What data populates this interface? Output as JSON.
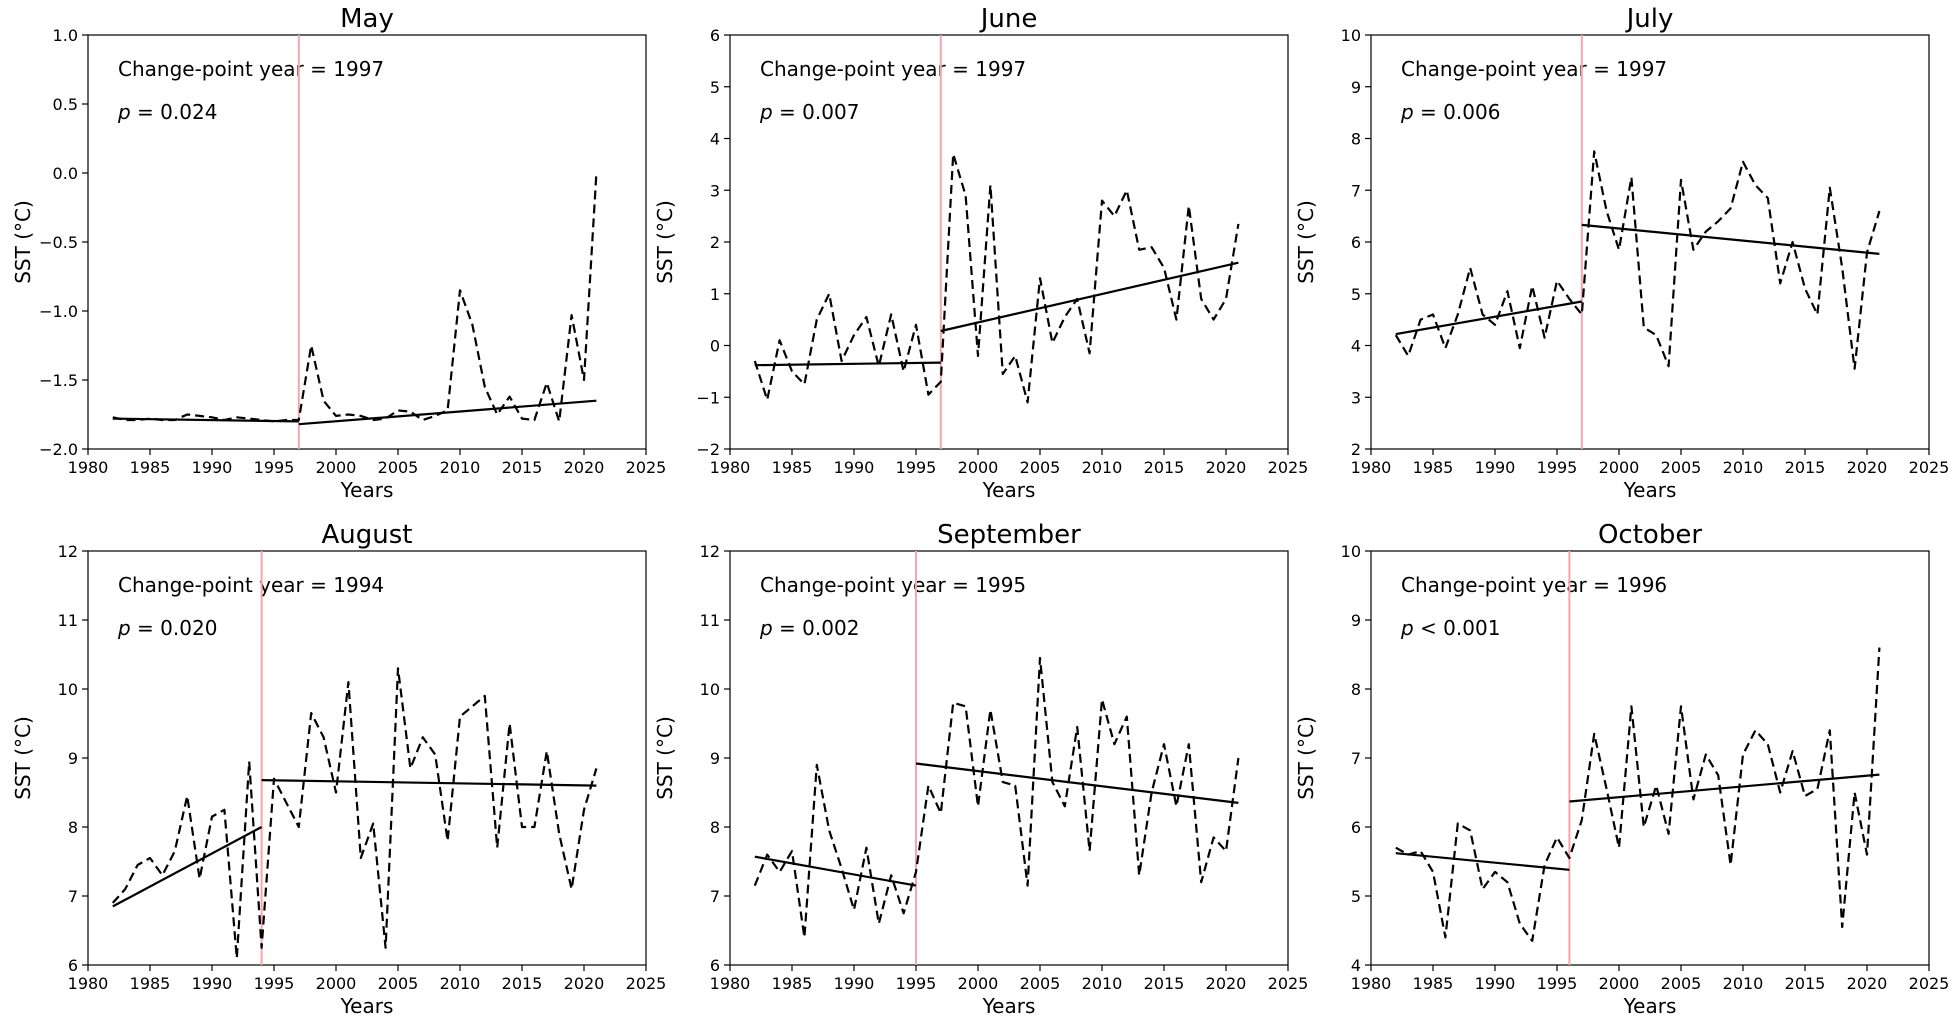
{
  "chart_data": [
    {
      "type": "line",
      "title": "May",
      "xlabel": "Years",
      "ylabel": "SST (°C)",
      "xlim": [
        1980,
        2025
      ],
      "ylim": [
        -2.0,
        1.0
      ],
      "xticks": [
        1980,
        1985,
        1990,
        1995,
        2000,
        2005,
        2010,
        2015,
        2020,
        2025
      ],
      "xtick_labels": [
        "1980",
        "1985",
        "1990",
        "1995",
        "2000",
        "2005",
        "2010",
        "2015",
        "2020",
        "2025"
      ],
      "yticks": [
        -2.0,
        -1.5,
        -1.0,
        -0.5,
        0.0,
        0.5,
        1.0
      ],
      "ytick_labels": [
        "−2.0",
        "−1.5",
        "−1.0",
        "−0.5",
        "0.0",
        "0.5",
        "1.0"
      ],
      "change_point_text": "Change-point year = 1997",
      "p_label": "p",
      "p_text": " = 0.024",
      "change_point": 1997,
      "series": [
        {
          "name": "SST",
          "style": "dashed",
          "x": [
            1982,
            1983,
            1984,
            1985,
            1986,
            1987,
            1988,
            1989,
            1990,
            1991,
            1992,
            1993,
            1994,
            1995,
            1996,
            1997,
            1998,
            1999,
            2000,
            2001,
            2002,
            2003,
            2004,
            2005,
            2006,
            2007,
            2008,
            2009,
            2010,
            2011,
            2012,
            2013,
            2014,
            2015,
            2016,
            2017,
            2018,
            2019,
            2020,
            2021
          ],
          "y": [
            -1.77,
            -1.79,
            -1.79,
            -1.78,
            -1.79,
            -1.79,
            -1.75,
            -1.76,
            -1.77,
            -1.79,
            -1.77,
            -1.78,
            -1.79,
            -1.8,
            -1.79,
            -1.79,
            -1.25,
            -1.65,
            -1.76,
            -1.75,
            -1.76,
            -1.79,
            -1.78,
            -1.72,
            -1.73,
            -1.79,
            -1.76,
            -1.72,
            -0.85,
            -1.1,
            -1.55,
            -1.75,
            -1.62,
            -1.78,
            -1.79,
            -1.52,
            -1.8,
            -1.03,
            -1.5,
            0.0
          ]
        },
        {
          "name": "Trend before change-point",
          "style": "solid",
          "x": [
            1982,
            1997
          ],
          "y": [
            -1.78,
            -1.8
          ]
        },
        {
          "name": "Trend after change-point",
          "style": "solid",
          "x": [
            1997,
            2021
          ],
          "y": [
            -1.82,
            -1.65
          ]
        }
      ]
    },
    {
      "type": "line",
      "title": "June",
      "xlabel": "Years",
      "ylabel": "SST (°C)",
      "xlim": [
        1980,
        2025
      ],
      "ylim": [
        -2,
        6
      ],
      "xticks": [
        1980,
        1985,
        1990,
        1995,
        2000,
        2005,
        2010,
        2015,
        2020,
        2025
      ],
      "xtick_labels": [
        "1980",
        "1985",
        "1990",
        "1995",
        "2000",
        "2005",
        "2010",
        "2015",
        "2020",
        "2025"
      ],
      "yticks": [
        -2,
        -1,
        0,
        1,
        2,
        3,
        4,
        5,
        6
      ],
      "ytick_labels": [
        "−2",
        "−1",
        "0",
        "1",
        "2",
        "3",
        "4",
        "5",
        "6"
      ],
      "change_point_text": "Change-point year = 1997",
      "p_label": "p",
      "p_text": " = 0.007",
      "change_point": 1997,
      "series": [
        {
          "name": "SST",
          "style": "dashed",
          "x": [
            1982,
            1983,
            1984,
            1985,
            1986,
            1987,
            1988,
            1989,
            1990,
            1991,
            1992,
            1993,
            1994,
            1995,
            1996,
            1997,
            1998,
            1999,
            2000,
            2001,
            2002,
            2003,
            2004,
            2005,
            2006,
            2007,
            2008,
            2009,
            2010,
            2011,
            2012,
            2013,
            2014,
            2015,
            2016,
            2017,
            2018,
            2019,
            2020,
            2021
          ],
          "y": [
            -0.3,
            -1.05,
            0.1,
            -0.5,
            -0.75,
            0.5,
            1.0,
            -0.3,
            0.2,
            0.55,
            -0.4,
            0.6,
            -0.5,
            0.4,
            -0.95,
            -0.7,
            3.7,
            2.9,
            -0.2,
            3.1,
            -0.55,
            -0.2,
            -1.1,
            1.3,
            0.05,
            0.55,
            0.9,
            -0.15,
            2.8,
            2.5,
            3.0,
            1.85,
            1.9,
            1.5,
            0.5,
            2.7,
            0.9,
            0.5,
            0.9,
            2.35
          ]
        },
        {
          "name": "Trend before change-point",
          "style": "solid",
          "x": [
            1982,
            1997
          ],
          "y": [
            -0.38,
            -0.33
          ]
        },
        {
          "name": "Trend after change-point",
          "style": "solid",
          "x": [
            1997,
            2021
          ],
          "y": [
            0.28,
            1.6
          ]
        }
      ]
    },
    {
      "type": "line",
      "title": "July",
      "xlabel": "Years",
      "ylabel": "SST (°C)",
      "xlim": [
        1980,
        2025
      ],
      "ylim": [
        2,
        10
      ],
      "xticks": [
        1980,
        1985,
        1990,
        1995,
        2000,
        2005,
        2010,
        2015,
        2020,
        2025
      ],
      "xtick_labels": [
        "1980",
        "1985",
        "1990",
        "1995",
        "2000",
        "2005",
        "2010",
        "2015",
        "2020",
        "2025"
      ],
      "yticks": [
        2,
        3,
        4,
        5,
        6,
        7,
        8,
        9,
        10
      ],
      "ytick_labels": [
        "2",
        "3",
        "4",
        "5",
        "6",
        "7",
        "8",
        "9",
        "10"
      ],
      "change_point_text": "Change-point year = 1997",
      "p_label": "p",
      "p_text": " = 0.006",
      "change_point": 1997,
      "series": [
        {
          "name": "SST",
          "style": "dashed",
          "x": [
            1982,
            1983,
            1984,
            1985,
            1986,
            1987,
            1988,
            1989,
            1990,
            1991,
            1992,
            1993,
            1994,
            1995,
            1996,
            1997,
            1998,
            1999,
            2000,
            2001,
            2002,
            2003,
            2004,
            2005,
            2006,
            2007,
            2008,
            2009,
            2010,
            2011,
            2012,
            2013,
            2014,
            2015,
            2016,
            2017,
            2018,
            2019,
            2020,
            2021
          ],
          "y": [
            4.2,
            3.8,
            4.5,
            4.6,
            3.95,
            4.6,
            5.5,
            4.6,
            4.4,
            5.05,
            3.95,
            5.15,
            4.15,
            5.25,
            4.9,
            4.6,
            7.75,
            6.6,
            5.85,
            7.25,
            4.35,
            4.2,
            3.6,
            7.2,
            5.85,
            6.2,
            6.4,
            6.65,
            7.55,
            7.1,
            6.85,
            5.2,
            6.0,
            5.1,
            4.6,
            7.05,
            5.5,
            3.55,
            5.8,
            6.6
          ]
        },
        {
          "name": "Trend before change-point",
          "style": "solid",
          "x": [
            1982,
            1997
          ],
          "y": [
            4.22,
            4.85
          ]
        },
        {
          "name": "Trend after change-point",
          "style": "solid",
          "x": [
            1997,
            2021
          ],
          "y": [
            6.33,
            5.77
          ]
        }
      ]
    },
    {
      "type": "line",
      "title": "August",
      "xlabel": "Years",
      "ylabel": "SST (°C)",
      "xlim": [
        1980,
        2025
      ],
      "ylim": [
        6,
        12
      ],
      "xticks": [
        1980,
        1985,
        1990,
        1995,
        2000,
        2005,
        2010,
        2015,
        2020,
        2025
      ],
      "xtick_labels": [
        "1980",
        "1985",
        "1990",
        "1995",
        "2000",
        "2005",
        "2010",
        "2015",
        "2020",
        "2025"
      ],
      "yticks": [
        6,
        7,
        8,
        9,
        10,
        11,
        12
      ],
      "ytick_labels": [
        "6",
        "7",
        "8",
        "9",
        "10",
        "11",
        "12"
      ],
      "change_point_text": "Change-point year = 1994",
      "p_label": "p",
      "p_text": " = 0.020",
      "change_point": 1994,
      "series": [
        {
          "name": "SST",
          "style": "dashed",
          "x": [
            1982,
            1983,
            1984,
            1985,
            1986,
            1987,
            1988,
            1989,
            1990,
            1991,
            1992,
            1993,
            1994,
            1995,
            1996,
            1997,
            1998,
            1999,
            2000,
            2001,
            2002,
            2003,
            2004,
            2005,
            2006,
            2007,
            2008,
            2009,
            2010,
            2011,
            2012,
            2013,
            2014,
            2015,
            2016,
            2017,
            2018,
            2019,
            2020,
            2021
          ],
          "y": [
            6.9,
            7.1,
            7.45,
            7.55,
            7.3,
            7.65,
            8.45,
            7.25,
            8.15,
            8.25,
            6.1,
            8.95,
            6.25,
            8.7,
            8.35,
            8.0,
            9.65,
            9.3,
            8.5,
            10.1,
            7.55,
            8.05,
            6.25,
            10.3,
            8.85,
            9.3,
            9.05,
            7.8,
            9.6,
            9.75,
            9.9,
            7.7,
            9.5,
            8.0,
            8.0,
            9.1,
            7.9,
            7.1,
            8.25,
            8.85
          ]
        },
        {
          "name": "Trend before change-point",
          "style": "solid",
          "x": [
            1982,
            1994
          ],
          "y": [
            6.85,
            8.0
          ]
        },
        {
          "name": "Trend after change-point",
          "style": "solid",
          "x": [
            1994,
            2021
          ],
          "y": [
            8.68,
            8.6
          ]
        }
      ]
    },
    {
      "type": "line",
      "title": "September",
      "xlabel": "Years",
      "ylabel": "SST (°C)",
      "xlim": [
        1980,
        2025
      ],
      "ylim": [
        6,
        12
      ],
      "xticks": [
        1980,
        1985,
        1990,
        1995,
        2000,
        2005,
        2010,
        2015,
        2020,
        2025
      ],
      "xtick_labels": [
        "1980",
        "1985",
        "1990",
        "1995",
        "2000",
        "2005",
        "2010",
        "2015",
        "2020",
        "2025"
      ],
      "yticks": [
        6,
        7,
        8,
        9,
        10,
        11,
        12
      ],
      "ytick_labels": [
        "6",
        "7",
        "8",
        "9",
        "10",
        "11",
        "12"
      ],
      "change_point_text": "Change-point year = 1995",
      "p_label": "p",
      "p_text": " = 0.002",
      "change_point": 1995,
      "series": [
        {
          "name": "SST",
          "style": "dashed",
          "x": [
            1982,
            1983,
            1984,
            1985,
            1986,
            1987,
            1988,
            1989,
            1990,
            1991,
            1992,
            1993,
            1994,
            1995,
            1996,
            1997,
            1998,
            1999,
            2000,
            2001,
            2002,
            2003,
            2004,
            2005,
            2006,
            2007,
            2008,
            2009,
            2010,
            2011,
            2012,
            2013,
            2014,
            2015,
            2016,
            2017,
            2018,
            2019,
            2020,
            2021
          ],
          "y": [
            7.15,
            7.6,
            7.35,
            7.65,
            6.4,
            8.9,
            7.95,
            7.4,
            6.8,
            7.7,
            6.6,
            7.3,
            6.75,
            7.35,
            8.6,
            8.2,
            9.8,
            9.75,
            8.3,
            9.7,
            8.65,
            8.6,
            7.15,
            10.45,
            8.65,
            8.3,
            9.45,
            7.65,
            9.85,
            9.2,
            9.6,
            7.3,
            8.5,
            9.2,
            8.3,
            9.2,
            7.2,
            7.85,
            7.65,
            9.0
          ]
        },
        {
          "name": "Trend before change-point",
          "style": "solid",
          "x": [
            1982,
            1995
          ],
          "y": [
            7.57,
            7.15
          ]
        },
        {
          "name": "Trend after change-point",
          "style": "solid",
          "x": [
            1995,
            2021
          ],
          "y": [
            8.92,
            8.35
          ]
        }
      ]
    },
    {
      "type": "line",
      "title": "October",
      "xlabel": "Years",
      "ylabel": "SST (°C)",
      "xlim": [
        1980,
        2025
      ],
      "ylim": [
        4,
        10
      ],
      "xticks": [
        1980,
        1985,
        1990,
        1995,
        2000,
        2005,
        2010,
        2015,
        2020,
        2025
      ],
      "xtick_labels": [
        "1980",
        "1985",
        "1990",
        "1995",
        "2000",
        "2005",
        "2010",
        "2015",
        "2020",
        "2025"
      ],
      "yticks": [
        4,
        5,
        6,
        7,
        8,
        9,
        10
      ],
      "ytick_labels": [
        "4",
        "5",
        "6",
        "7",
        "8",
        "9",
        "10"
      ],
      "change_point_text": "Change-point year = 1996",
      "p_label": "p",
      "p_text": " < 0.001",
      "change_point": 1996,
      "series": [
        {
          "name": "SST",
          "style": "dashed",
          "x": [
            1982,
            1983,
            1984,
            1985,
            1986,
            1987,
            1988,
            1989,
            1990,
            1991,
            1992,
            1993,
            1994,
            1995,
            1996,
            1997,
            1998,
            1999,
            2000,
            2001,
            2002,
            2003,
            2004,
            2005,
            2006,
            2007,
            2008,
            2009,
            2010,
            2011,
            2012,
            2013,
            2014,
            2015,
            2016,
            2017,
            2018,
            2019,
            2020,
            2021
          ],
          "y": [
            5.7,
            5.6,
            5.65,
            5.35,
            4.4,
            6.05,
            5.95,
            5.1,
            5.35,
            5.2,
            4.6,
            4.35,
            5.45,
            5.85,
            5.55,
            6.1,
            7.35,
            6.55,
            5.7,
            7.75,
            6.0,
            6.6,
            5.9,
            7.75,
            6.4,
            7.05,
            6.75,
            5.45,
            7.05,
            7.4,
            7.2,
            6.5,
            7.1,
            6.45,
            6.55,
            7.4,
            4.55,
            6.5,
            5.6,
            8.6
          ]
        },
        {
          "name": "Trend before change-point",
          "style": "solid",
          "x": [
            1982,
            1996
          ],
          "y": [
            5.62,
            5.38
          ]
        },
        {
          "name": "Trend after change-point",
          "style": "solid",
          "x": [
            1996,
            2021
          ],
          "y": [
            6.37,
            6.76
          ]
        }
      ]
    }
  ]
}
